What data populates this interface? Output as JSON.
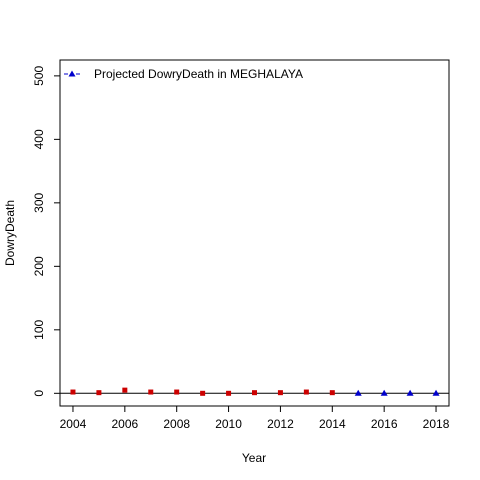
{
  "chart_data": {
    "type": "scatter",
    "title": "",
    "xlabel": "Year",
    "ylabel": "DowryDeath",
    "xlim": [
      2003.5,
      2018.5
    ],
    "ylim": [
      -20,
      525
    ],
    "x_ticks": [
      2004,
      2006,
      2008,
      2010,
      2012,
      2014,
      2016,
      2018
    ],
    "y_ticks": [
      0,
      100,
      200,
      300,
      400,
      500
    ],
    "grid": false,
    "legend_position": "top-left",
    "baseline": 0,
    "series": [
      {
        "marker": "square",
        "color": "#cc0000",
        "x": [
          2004,
          2005,
          2006,
          2007,
          2008,
          2009,
          2010,
          2011,
          2012,
          2013,
          2014
        ],
        "y": [
          2,
          1,
          5,
          2,
          2,
          0,
          0,
          1,
          1,
          2,
          1
        ]
      },
      {
        "name": "Projected  DowryDeath  in  MEGHALAYA",
        "marker": "triangle",
        "color": "#0000cc",
        "x": [
          2015,
          2016,
          2017,
          2018
        ],
        "y": [
          0,
          0,
          0,
          0
        ]
      }
    ]
  }
}
